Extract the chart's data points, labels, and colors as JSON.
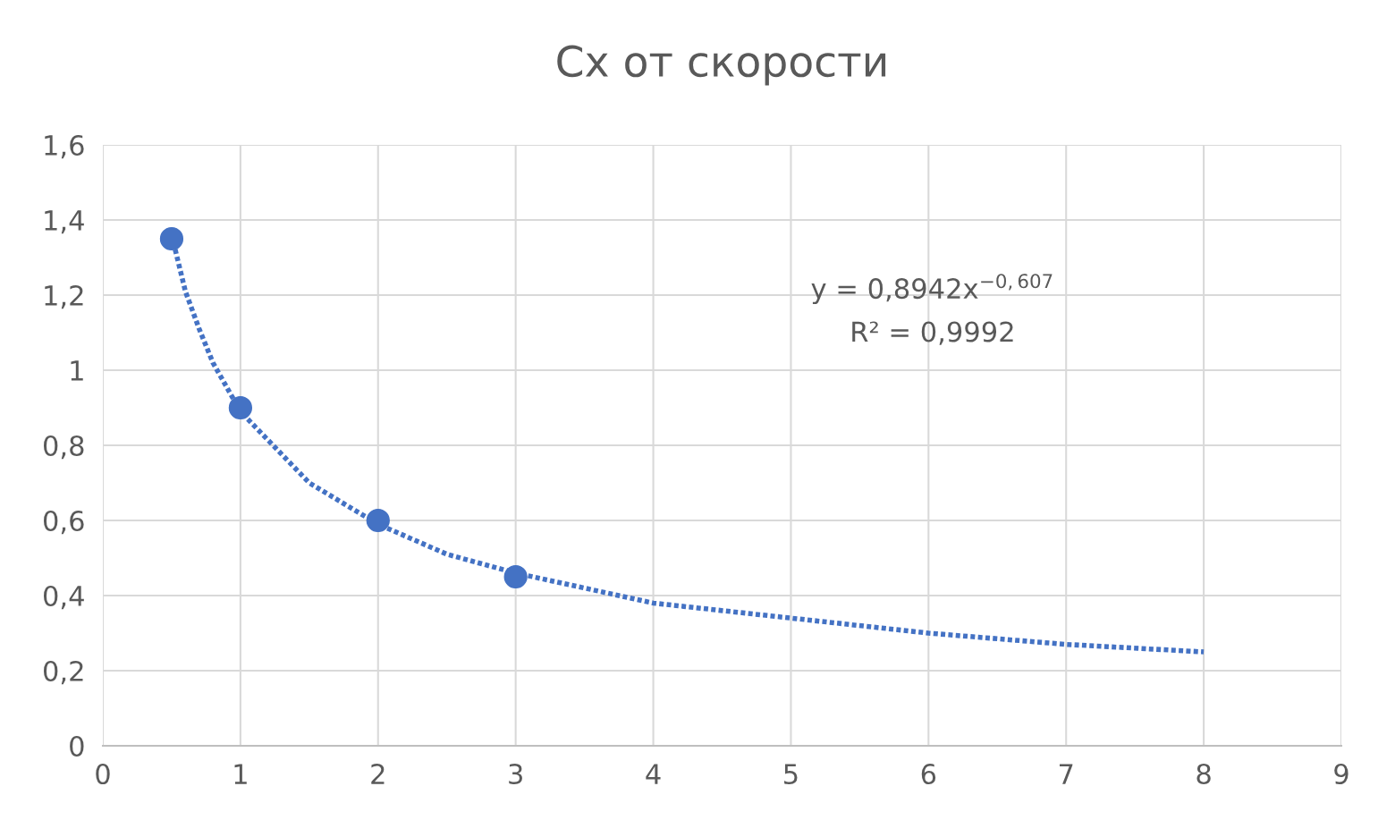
{
  "chart_data": {
    "type": "scatter",
    "title": "Сх от скорости",
    "series": [
      {
        "color": "#4472c4",
        "marker": "circle",
        "x": [
          0.5,
          1,
          2,
          3
        ],
        "values": [
          1.35,
          0.9,
          0.6,
          0.45
        ]
      },
      {
        "type": "line",
        "color": "#4472c4",
        "line_style": "dotted",
        "marker": "none",
        "x": [
          0.5,
          0.6,
          0.7,
          0.8,
          1,
          1.5,
          2,
          2.5,
          3,
          4,
          5,
          6,
          7,
          8
        ],
        "values": [
          1.36,
          1.21,
          1.11,
          1.02,
          0.89,
          0.7,
          0.59,
          0.51,
          0.46,
          0.38,
          0.34,
          0.3,
          0.27,
          0.25
        ]
      }
    ],
    "annotations": [
      "y = 0,8942x$^{−0,607}$",
      "R² = 0,9992"
    ],
    "xlim": [
      0,
      9
    ],
    "xticks": [
      0,
      1,
      2,
      3,
      4,
      5,
      6,
      7,
      8,
      9
    ],
    "ylim": [
      0,
      1.6
    ],
    "yticks": [
      0,
      {
        "value": 0.2,
        "label": "0,2"
      },
      {
        "value": 0.4,
        "label": "0,4"
      },
      {
        "value": 0.6,
        "label": "0,6"
      },
      {
        "value": 0.8,
        "label": "0,8"
      },
      1,
      {
        "value": 1.2,
        "label": "1,2"
      },
      {
        "value": 1.4,
        "label": "1,4"
      },
      {
        "value": 1.6,
        "label": "1,6"
      }
    ],
    "grid": true
  }
}
